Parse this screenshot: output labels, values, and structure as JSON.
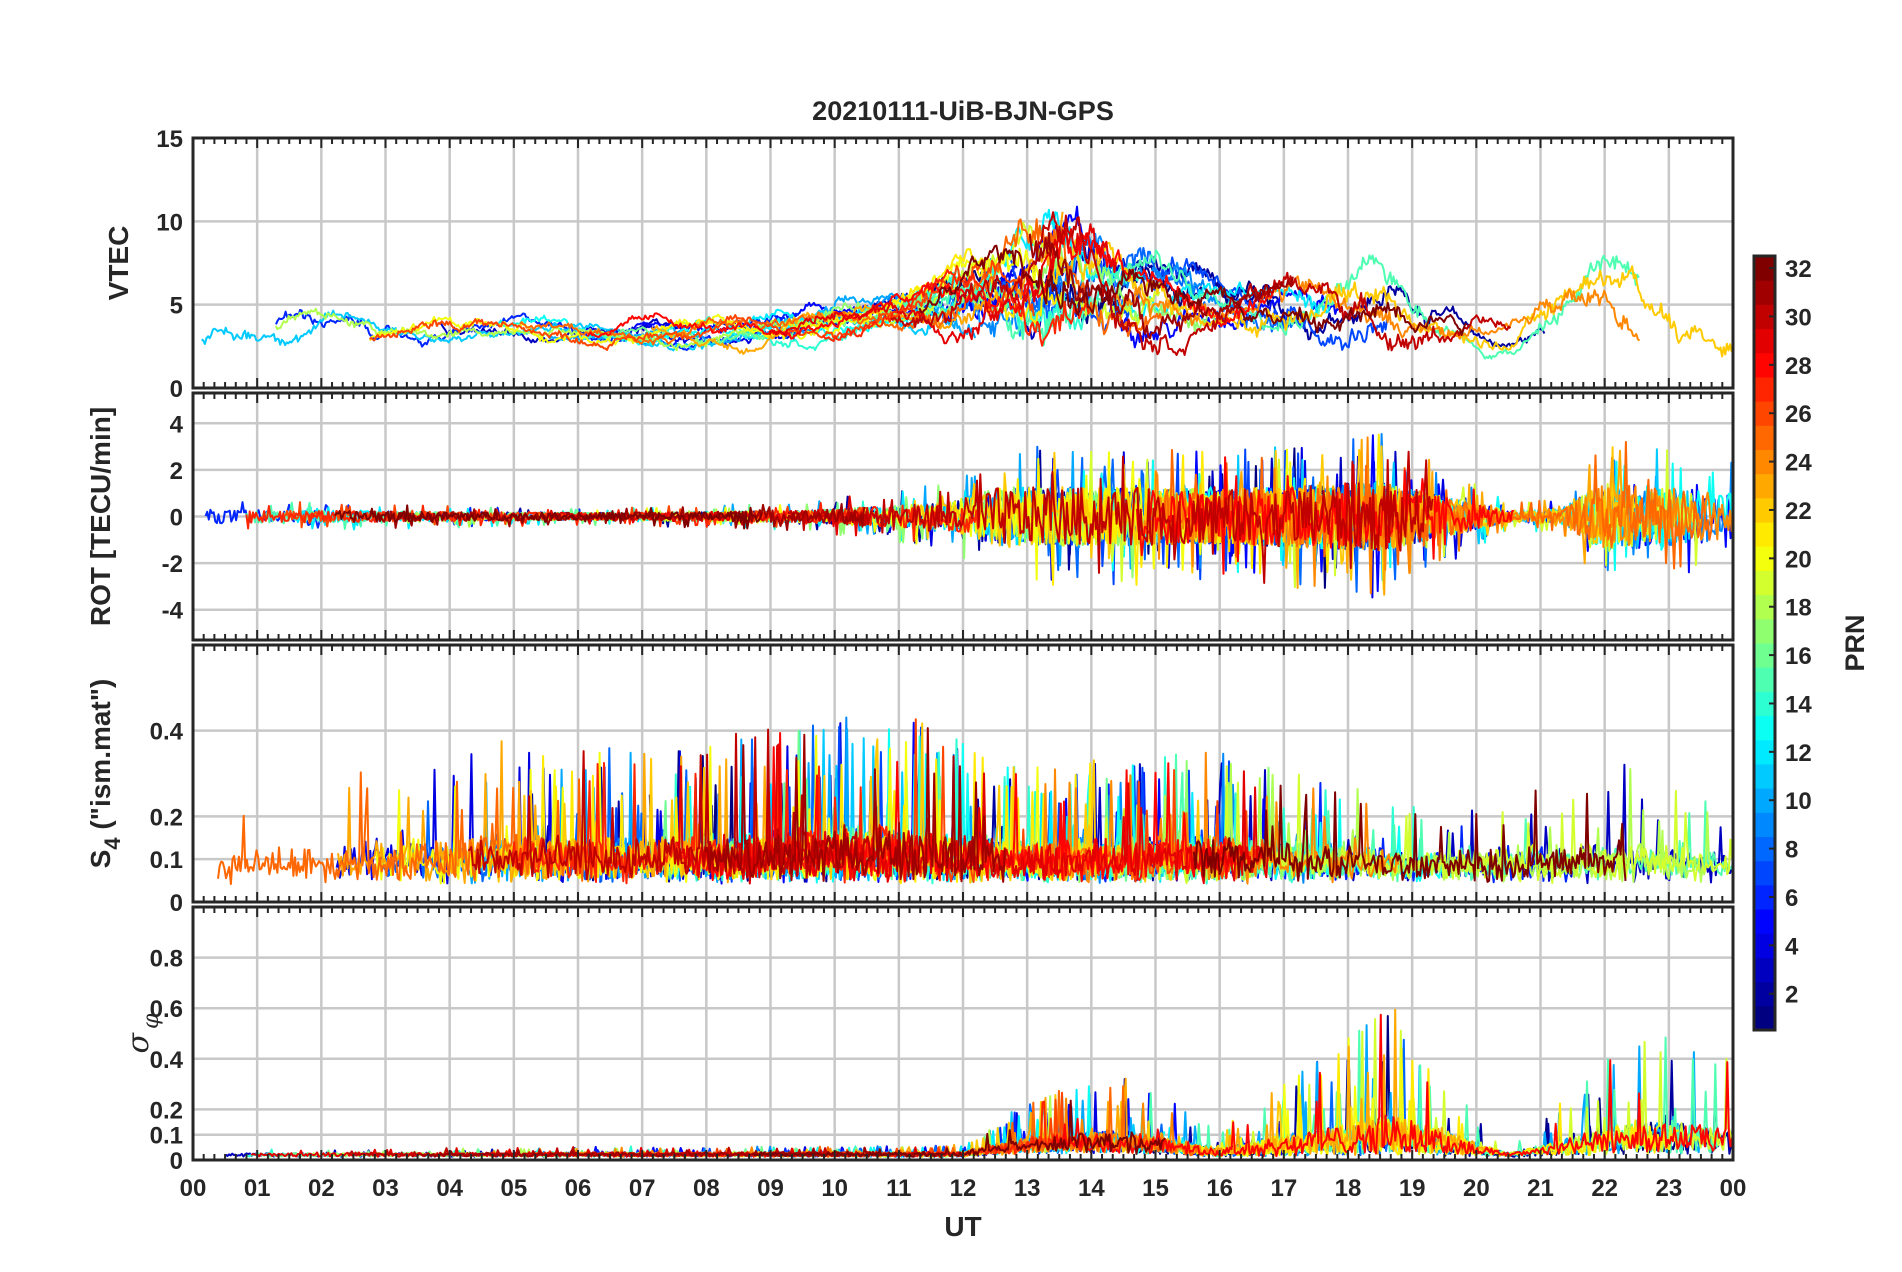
{
  "title": "20210111-UiB-BJN-GPS",
  "x_axis": {
    "label": "UT",
    "range": [
      0,
      24
    ],
    "ticks": [
      "00",
      "01",
      "02",
      "03",
      "04",
      "05",
      "06",
      "07",
      "08",
      "09",
      "10",
      "11",
      "12",
      "13",
      "14",
      "15",
      "16",
      "17",
      "18",
      "19",
      "20",
      "21",
      "22",
      "23",
      "00"
    ]
  },
  "colorbar": {
    "label": "PRN",
    "range": [
      1,
      32
    ],
    "ticks": [
      "2",
      "4",
      "6",
      "8",
      "10",
      "12",
      "14",
      "16",
      "18",
      "20",
      "22",
      "24",
      "26",
      "28",
      "30",
      "32"
    ],
    "colormap": "jet"
  },
  "chart_data": [
    {
      "type": "line",
      "panel": "VTEC",
      "ylabel": "VTEC",
      "ylim": [
        0,
        15
      ],
      "yticks": [
        "0",
        "5",
        "10",
        "15"
      ],
      "grid": true,
      "envelope": [
        {
          "ut": 0,
          "base": 3.5,
          "amp": 1.5
        },
        {
          "ut": 4,
          "base": 3.5,
          "amp": 1.0
        },
        {
          "ut": 6,
          "base": 3.3,
          "amp": 0.8
        },
        {
          "ut": 9,
          "base": 3.5,
          "amp": 1.0
        },
        {
          "ut": 11,
          "base": 4.5,
          "amp": 1.3
        },
        {
          "ut": 12.5,
          "base": 6,
          "amp": 3
        },
        {
          "ut": 13.5,
          "base": 7.5,
          "amp": 4.5
        },
        {
          "ut": 14.5,
          "base": 6,
          "amp": 3
        },
        {
          "ut": 16,
          "base": 5,
          "amp": 2
        },
        {
          "ut": 18.5,
          "base": 5,
          "amp": 2.5
        },
        {
          "ut": 20.5,
          "base": 3,
          "amp": 1
        },
        {
          "ut": 22,
          "base": 6,
          "amp": 3
        },
        {
          "ut": 24,
          "base": 4,
          "amp": 2
        }
      ]
    },
    {
      "type": "line",
      "panel": "ROT",
      "ylabel": "ROT [TECU/min]",
      "ylim": [
        -5.3,
        5.3
      ],
      "yticks": [
        "-4",
        "-2",
        "0",
        "2",
        "4"
      ],
      "grid": true,
      "envelope": [
        {
          "ut": 0,
          "base": 0,
          "amp": 0.6
        },
        {
          "ut": 6,
          "base": 0,
          "amp": 0.3
        },
        {
          "ut": 9.5,
          "base": 0,
          "amp": 0.5
        },
        {
          "ut": 11.8,
          "base": 0,
          "amp": 1.2
        },
        {
          "ut": 12.5,
          "base": 0,
          "amp": 2.5
        },
        {
          "ut": 14.5,
          "base": 0,
          "amp": 2.5
        },
        {
          "ut": 16,
          "base": 0,
          "amp": 2.3
        },
        {
          "ut": 18.5,
          "base": 0,
          "amp": 3
        },
        {
          "ut": 20.5,
          "base": 0,
          "amp": 0.5
        },
        {
          "ut": 21.3,
          "base": 0,
          "amp": 0.6
        },
        {
          "ut": 22,
          "base": 0,
          "amp": 3
        },
        {
          "ut": 24,
          "base": 0,
          "amp": 2
        }
      ]
    },
    {
      "type": "line",
      "panel": "S4",
      "ylabel": "S4 (\"ism.mat\")",
      "ylim": [
        0,
        0.6
      ],
      "yticks": [
        "0",
        "0.1",
        "0.2",
        "0.4"
      ],
      "grid": true,
      "envelope": [
        {
          "ut": 0,
          "base": 0.06,
          "amp": 0.08
        },
        {
          "ut": 1,
          "base": 0.07,
          "amp": 0.2
        },
        {
          "ut": 4.8,
          "base": 0.07,
          "amp": 0.3
        },
        {
          "ut": 8,
          "base": 0.07,
          "amp": 0.3
        },
        {
          "ut": 10.8,
          "base": 0.07,
          "amp": 0.4
        },
        {
          "ut": 13,
          "base": 0.07,
          "amp": 0.25
        },
        {
          "ut": 16,
          "base": 0.07,
          "amp": 0.3
        },
        {
          "ut": 19,
          "base": 0.07,
          "amp": 0.15
        },
        {
          "ut": 22.5,
          "base": 0.07,
          "amp": 0.25
        },
        {
          "ut": 24,
          "base": 0.07,
          "amp": 0.15
        }
      ]
    },
    {
      "type": "line",
      "panel": "sigma_phi",
      "ylabel": "σφ",
      "ylim": [
        0,
        1
      ],
      "yticks": [
        "0",
        "0.1",
        "0.2",
        "0.4",
        "0.6",
        "0.8"
      ],
      "grid": true,
      "envelope": [
        {
          "ut": 0,
          "base": 0.02,
          "amp": 0.02
        },
        {
          "ut": 12,
          "base": 0.02,
          "amp": 0.04
        },
        {
          "ut": 13,
          "base": 0.04,
          "amp": 0.2
        },
        {
          "ut": 14.5,
          "base": 0.04,
          "amp": 0.3
        },
        {
          "ut": 16,
          "base": 0.02,
          "amp": 0.1
        },
        {
          "ut": 18.7,
          "base": 0.03,
          "amp": 0.6
        },
        {
          "ut": 20.5,
          "base": 0.02,
          "amp": 0.02
        },
        {
          "ut": 22.5,
          "base": 0.03,
          "amp": 0.5
        },
        {
          "ut": 24,
          "base": 0.03,
          "amp": 0.4
        }
      ]
    }
  ]
}
